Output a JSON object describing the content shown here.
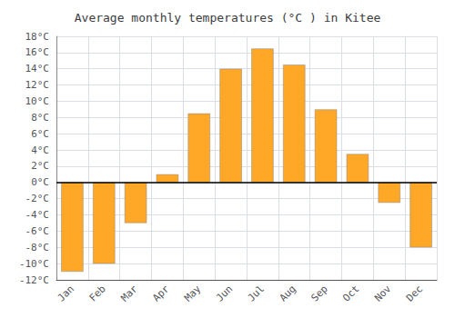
{
  "chart_data": {
    "type": "bar",
    "title": "Average monthly temperatures (°C ) in Kitee",
    "categories": [
      "Jan",
      "Feb",
      "Mar",
      "Apr",
      "May",
      "Jun",
      "Jul",
      "Aug",
      "Sep",
      "Oct",
      "Nov",
      "Dec"
    ],
    "values": [
      -11,
      -10,
      -5,
      1,
      8.5,
      14,
      16.5,
      14.5,
      9,
      3.5,
      -2.5,
      -8
    ],
    "color": "#FFA726",
    "ylim": [
      -12,
      18
    ],
    "yticks": [
      {
        "value": -12,
        "label": "-12°C"
      },
      {
        "value": -10,
        "label": "-10°C"
      },
      {
        "value": -8,
        "label": "-8°C"
      },
      {
        "value": -6,
        "label": "-6°C"
      },
      {
        "value": -4,
        "label": "-4°C"
      },
      {
        "value": -2,
        "label": "-2°C"
      },
      {
        "value": 0,
        "label": "0°C"
      },
      {
        "value": 2,
        "label": "2°C"
      },
      {
        "value": 4,
        "label": "4°C"
      },
      {
        "value": 6,
        "label": "6°C"
      },
      {
        "value": 8,
        "label": "8°C"
      },
      {
        "value": 10,
        "label": "10°C"
      },
      {
        "value": 12,
        "label": "12°C"
      },
      {
        "value": 14,
        "label": "14°C"
      },
      {
        "value": 16,
        "label": "16°C"
      },
      {
        "value": 18,
        "label": "18°C"
      }
    ],
    "grid": true
  }
}
